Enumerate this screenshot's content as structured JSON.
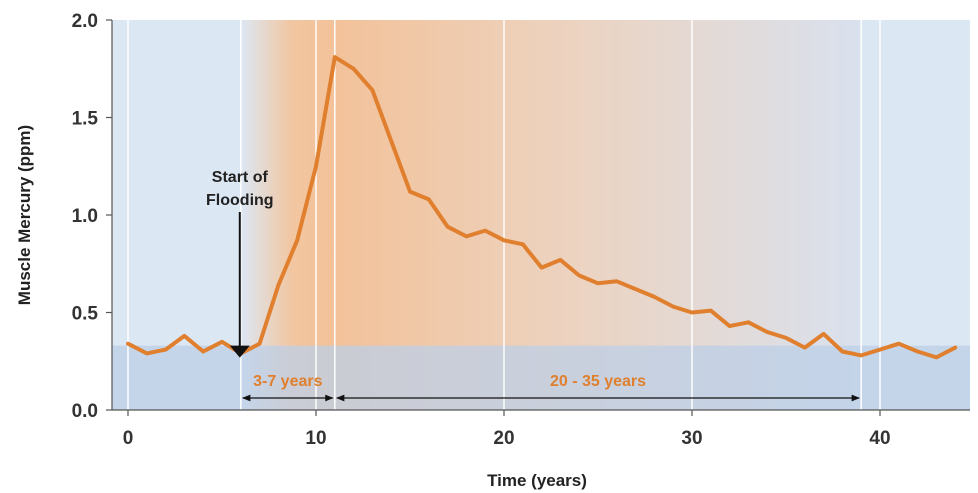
{
  "chart_data": {
    "type": "line",
    "title": "",
    "xlabel": "Time (years)",
    "ylabel": "Muscle Mercury (ppm)",
    "xlim": [
      -1,
      45
    ],
    "ylim": [
      0.0,
      2.0
    ],
    "xticks": [
      0,
      10,
      20,
      30,
      40
    ],
    "xtick_labels": [
      "0",
      "10",
      "20",
      "30",
      "40"
    ],
    "yticks": [
      0.0,
      0.5,
      1.0,
      1.5,
      2.0
    ],
    "ytick_labels": [
      "0.0",
      "0.5",
      "1.0",
      "1.5",
      "2.0"
    ],
    "grid": "vertical",
    "baseline_band_max": 0.33,
    "series": [
      {
        "color": "#e07f2e",
        "x": [
          0,
          1,
          2,
          3,
          4,
          5,
          6,
          7,
          8,
          9,
          10,
          11,
          12,
          13,
          14,
          15,
          16,
          17,
          18,
          19,
          20,
          21,
          22,
          23,
          24,
          25,
          26,
          27,
          28,
          29,
          30,
          31,
          32,
          33,
          34,
          35,
          36,
          37,
          38,
          39,
          40,
          41,
          42,
          43,
          44
        ],
        "y": [
          0.34,
          0.29,
          0.31,
          0.38,
          0.3,
          0.35,
          0.29,
          0.34,
          0.64,
          0.87,
          1.25,
          1.81,
          1.75,
          1.64,
          1.38,
          1.12,
          1.08,
          0.94,
          0.89,
          0.92,
          0.87,
          0.85,
          0.73,
          0.77,
          0.69,
          0.65,
          0.66,
          0.62,
          0.58,
          0.53,
          0.5,
          0.51,
          0.43,
          0.45,
          0.4,
          0.37,
          0.32,
          0.39,
          0.3,
          0.28,
          0.31,
          0.34,
          0.3,
          0.27,
          0.32
        ]
      }
    ],
    "annotations": {
      "flooding": {
        "text_line1": "Start of",
        "text_line2": "Flooding",
        "x": 6.0,
        "y": 0.33
      },
      "span1": {
        "label": "3-7 years",
        "x_start": 6.0,
        "x_end": 11.0
      },
      "span2": {
        "label": "20 - 35 years",
        "x_start": 11.0,
        "x_end": 39.0
      }
    },
    "colors": {
      "line": "#e07f2e",
      "span_label": "#e07f2e",
      "background_blue": "#dce7f4",
      "band_blue": "#bccfe7",
      "orange_region": "#f2c29a"
    }
  }
}
